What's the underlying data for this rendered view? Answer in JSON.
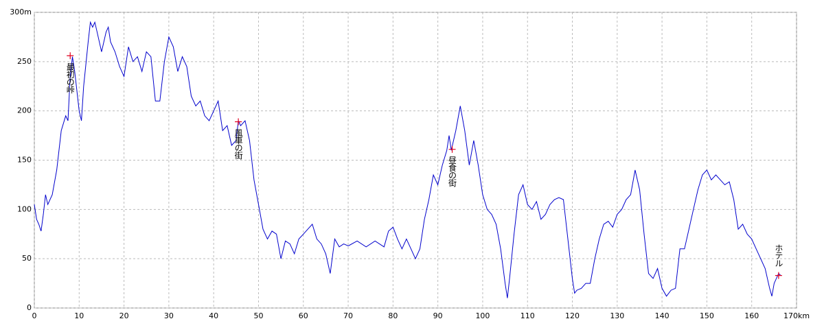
{
  "chart_data": {
    "type": "line",
    "x": [
      0,
      0.5,
      1,
      1.5,
      2,
      2.5,
      3,
      4,
      5,
      6,
      7,
      7.5,
      8,
      8.5,
      9,
      10,
      10.5,
      11,
      12,
      12.5,
      13,
      13.5,
      14,
      15,
      16,
      16.5,
      17,
      18,
      19,
      20,
      21,
      22,
      23,
      24,
      25,
      26,
      27,
      28,
      28.5,
      29,
      30,
      31,
      32,
      33,
      34,
      35,
      36,
      37,
      38,
      39,
      40,
      41,
      42,
      43,
      44,
      45,
      45.5,
      46,
      47,
      48,
      49,
      50,
      51,
      52,
      53,
      54,
      55,
      56,
      57,
      58,
      59,
      60,
      61,
      62,
      63,
      64,
      65,
      66,
      67,
      68,
      69,
      70,
      72,
      74,
      76,
      78,
      79,
      80,
      81,
      82,
      83,
      84,
      85,
      86,
      87,
      88,
      89,
      90,
      91,
      92,
      92.5,
      93,
      94,
      95,
      96,
      97,
      98,
      99,
      100,
      101,
      102,
      103,
      104,
      105,
      105.5,
      106,
      107,
      108,
      109,
      110,
      111,
      112,
      113,
      114,
      115,
      116,
      117,
      118,
      119,
      120,
      120.5,
      121,
      122,
      123,
      124,
      125,
      126,
      127,
      128,
      129,
      130,
      131,
      132,
      133,
      134,
      135,
      136,
      137,
      138,
      139,
      140,
      141,
      142,
      143,
      144,
      145,
      146,
      147,
      148,
      149,
      150,
      151,
      152,
      153,
      154,
      155,
      156,
      157,
      158,
      159,
      160,
      161,
      162,
      163,
      164,
      164.5,
      165,
      166,
      166.5
    ],
    "values": [
      105,
      90,
      85,
      78,
      95,
      115,
      105,
      115,
      140,
      180,
      195,
      190,
      235,
      255,
      240,
      200,
      190,
      225,
      270,
      290,
      285,
      290,
      280,
      260,
      280,
      285,
      270,
      260,
      245,
      235,
      265,
      250,
      255,
      240,
      260,
      255,
      210,
      210,
      230,
      250,
      275,
      265,
      240,
      255,
      245,
      215,
      205,
      210,
      195,
      190,
      200,
      210,
      180,
      185,
      165,
      170,
      190,
      185,
      190,
      170,
      130,
      105,
      80,
      70,
      78,
      75,
      50,
      68,
      65,
      55,
      70,
      75,
      80,
      85,
      70,
      65,
      55,
      35,
      70,
      62,
      65,
      63,
      68,
      62,
      68,
      62,
      78,
      82,
      70,
      60,
      70,
      60,
      50,
      60,
      90,
      110,
      135,
      125,
      145,
      160,
      175,
      160,
      180,
      205,
      180,
      145,
      170,
      145,
      115,
      100,
      95,
      85,
      60,
      25,
      10,
      30,
      75,
      115,
      125,
      105,
      100,
      108,
      90,
      95,
      105,
      110,
      112,
      110,
      70,
      30,
      15,
      18,
      20,
      25,
      25,
      50,
      70,
      85,
      88,
      82,
      95,
      100,
      110,
      115,
      140,
      120,
      75,
      35,
      30,
      40,
      20,
      12,
      18,
      20,
      60,
      60,
      80,
      100,
      120,
      135,
      140,
      130,
      135,
      130,
      125,
      128,
      110,
      80,
      85,
      75,
      70,
      60,
      50,
      40,
      20,
      12,
      25,
      35,
      33
    ],
    "color": "#0000cc",
    "xlim": [
      0,
      170
    ],
    "xticks": [
      0,
      10,
      20,
      30,
      40,
      50,
      60,
      70,
      80,
      90,
      100,
      110,
      120,
      130,
      140,
      150,
      160,
      {
        "value": 170,
        "label": "170km"
      }
    ],
    "ylim": [
      0,
      300
    ],
    "yticks": [
      0,
      50,
      100,
      150,
      200,
      250,
      {
        "value": 300,
        "label": "300m"
      }
    ],
    "grid": true,
    "annotations": [
      {
        "x": 8,
        "y": 256,
        "label": "最初の峠"
      },
      {
        "x": 45.5,
        "y": 189,
        "label": "風車の街"
      },
      {
        "x": 93.2,
        "y": 161,
        "label": "昼食の街"
      },
      {
        "x": 166,
        "y": 33,
        "label": "ホテル"
      }
    ]
  }
}
